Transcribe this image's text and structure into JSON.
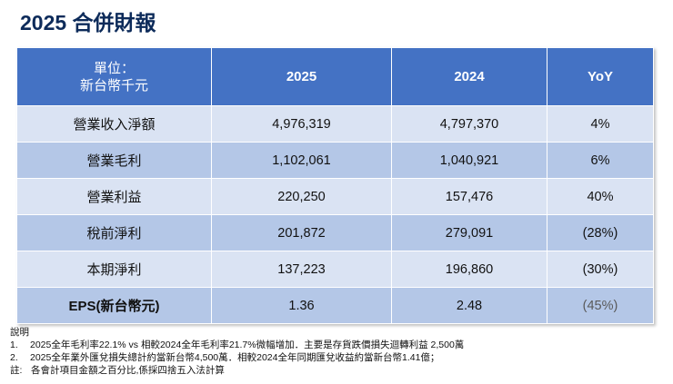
{
  "title": "2025 合併財報",
  "table": {
    "headers": {
      "unit_line1": "單位：",
      "unit_line2": "新台幣千元",
      "col_2025": "2025",
      "col_2024": "2024",
      "col_yoy": "YoY"
    },
    "rows": [
      {
        "label": "營業收入淨額",
        "v2025": "4,976,319",
        "v2024": "4,797,370",
        "yoy": "4%"
      },
      {
        "label": "營業毛利",
        "v2025": "1,102,061",
        "v2024": "1,040,921",
        "yoy": "6%"
      },
      {
        "label": "營業利益",
        "v2025": "220,250",
        "v2024": "157,476",
        "yoy": "40%"
      },
      {
        "label": "稅前淨利",
        "v2025": "201,872",
        "v2024": "279,091",
        "yoy": "(28%)"
      },
      {
        "label": "本期淨利",
        "v2025": "137,223",
        "v2024": "196,860",
        "yoy": "(30%)"
      },
      {
        "label": "EPS(新台幣元)",
        "v2025": "1.36",
        "v2024": "2.48",
        "yoy": "(45%)"
      }
    ]
  },
  "notes": {
    "heading": "說明",
    "items": [
      {
        "num": "1.",
        "text": "2025全年毛利率22.1% vs 相較2024全年毛利率21.7%微幅增加．主要是存貨跌價損失迴轉利益 2,500萬"
      },
      {
        "num": "2.",
        "text": "2025全年業外匯兌損失總計約當新台幣4,500萬．相較2024全年同期匯兌收益約當新台幣1.41億；"
      }
    ],
    "footnote_key": "註:",
    "footnote_text": "各會計項目金額之百分比,係採四捨五入法計算"
  },
  "colors": {
    "header": "#4472c4",
    "row_light": "#dae3f3",
    "row_dark": "#b4c7e7",
    "title": "#0d2b5a"
  }
}
